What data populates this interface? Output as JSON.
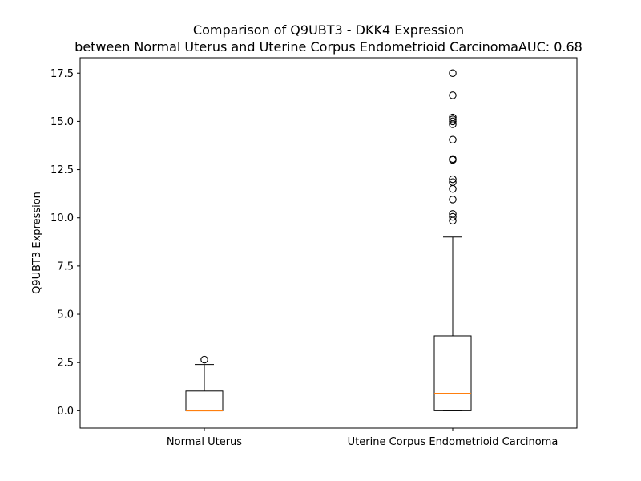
{
  "chart_data": {
    "type": "box",
    "title_lines": [
      "Comparison of Q9UBT3 - DKK4 Expression",
      "between Normal Uterus and Uterine Corpus Endometrioid CarcinomaAUC: 0.68"
    ],
    "xlabel": "",
    "ylabel": "Q9UBT3 Expression",
    "ylim": [
      -0.9,
      18.3
    ],
    "yticks": [
      0.0,
      2.5,
      5.0,
      7.5,
      10.0,
      12.5,
      15.0,
      17.5
    ],
    "ytick_labels": [
      "0.0",
      "2.5",
      "5.0",
      "7.5",
      "10.0",
      "12.5",
      "15.0",
      "17.5"
    ],
    "categories": [
      "Normal Uterus",
      "Uterine Corpus Endometrioid Carcinoma"
    ],
    "boxes": [
      {
        "whisker_low": 0.0,
        "q1": 0.0,
        "median": 0.0,
        "q3": 1.02,
        "whisker_high": 2.4,
        "outliers": [
          2.65
        ]
      },
      {
        "whisker_low": 0.0,
        "q1": 0.0,
        "median": 0.9,
        "q3": 3.88,
        "whisker_high": 9.0,
        "outliers": [
          9.85,
          10.05,
          10.2,
          10.95,
          11.5,
          11.85,
          12.0,
          13.0,
          13.05,
          14.05,
          14.85,
          15.0,
          15.1,
          15.2,
          16.35,
          17.5
        ]
      }
    ],
    "colors": {
      "box": "#000000",
      "median": "#ff7f0e",
      "outlier": "#000000"
    },
    "grid": false,
    "legend": "none"
  }
}
